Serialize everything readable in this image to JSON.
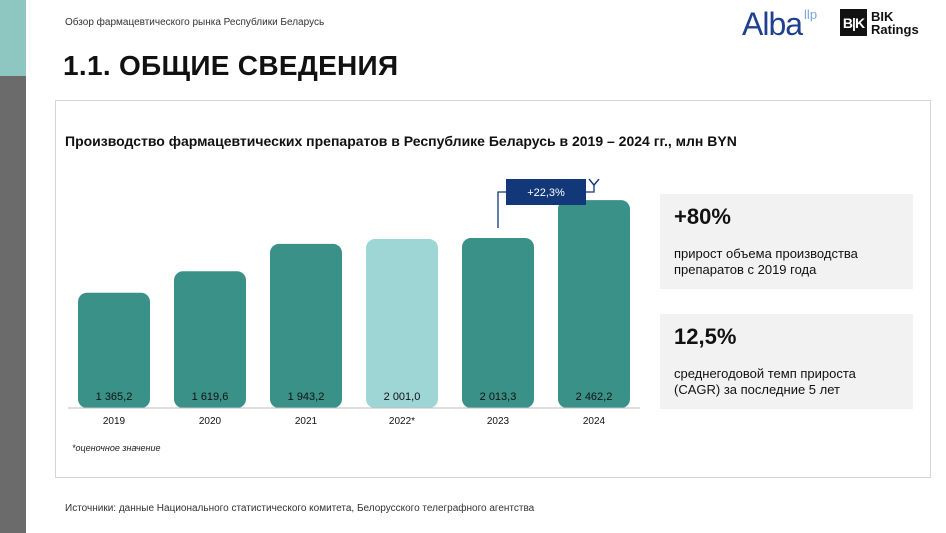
{
  "header": {
    "subtitle": "Обзор фармацевтического рынка Республики Беларусь",
    "title": "1.1. ОБЩИЕ СВЕДЕНИЯ",
    "logos": {
      "alba": "Alba",
      "alba_sup": "llp",
      "bik_mark": "BIK",
      "bik_line1": "BIK",
      "bik_line2": "Ratings"
    }
  },
  "colors": {
    "bar": "#3a9188",
    "bar_estimate": "#9dd6d4",
    "callout": "#12387a",
    "side_top": "#8ec6c2",
    "side_bottom": "#6b6b6b"
  },
  "chart_data": {
    "type": "bar",
    "title": "Производство фармацевтических препаратов в Республике Беларусь в 2019 – 2024 гг., млн BYN",
    "categories": [
      "2019",
      "2020",
      "2021",
      "2022*",
      "2023",
      "2024"
    ],
    "values": [
      1365.2,
      1619.6,
      1943.2,
      2001.0,
      2013.3,
      2462.2
    ],
    "value_labels": [
      "1 365,2",
      "1 619,6",
      "1 943,2",
      "2 001,0",
      "2 013,3",
      "2 462,2"
    ],
    "estimated": [
      false,
      false,
      false,
      true,
      false,
      false
    ],
    "ylim": [
      0,
      2700
    ],
    "annotation": {
      "from": "2023",
      "to": "2024",
      "label": "+22,3%"
    },
    "footnote": "*оценочное значение"
  },
  "stats": [
    {
      "value": "+80%",
      "description": "прирост объема производства препаратов с 2019 года"
    },
    {
      "value": "12,5%",
      "description": "среднегодовой темп прироста (CAGR) за последние 5 лет"
    }
  ],
  "source": "Источники: данные Национального статистического комитета, Белорусского телеграфного агентства"
}
